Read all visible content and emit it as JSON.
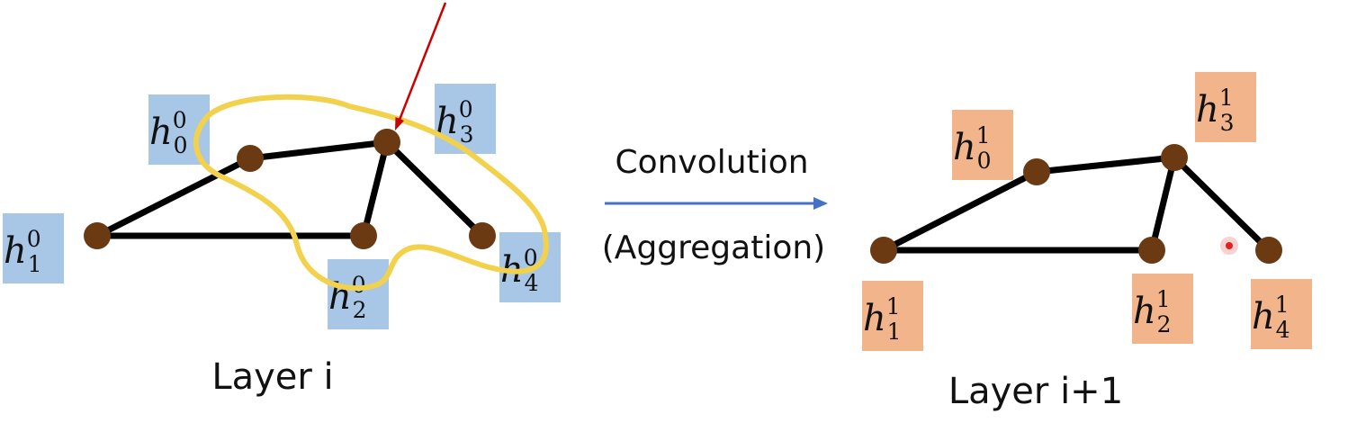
{
  "colors": {
    "edge": "#000000",
    "node": "#6b3a12",
    "layer_in_box": "#a8c6e6",
    "layer_out_box": "#f1b48b",
    "highlight": "#f2d24c",
    "pointer": "#cc0000",
    "arrow": "#4472c4"
  },
  "layer_in": {
    "caption": "Layer i",
    "labels": [
      {
        "base": "h",
        "sup": "0",
        "sub": "0"
      },
      {
        "base": "h",
        "sup": "0",
        "sub": "1"
      },
      {
        "base": "h",
        "sup": "0",
        "sub": "2"
      },
      {
        "base": "h",
        "sup": "0",
        "sub": "3"
      },
      {
        "base": "h",
        "sup": "0",
        "sub": "4"
      }
    ]
  },
  "operation": {
    "top": "Convolution",
    "bottom": "(Aggregation)"
  },
  "layer_out": {
    "caption": "Layer i+1",
    "labels": [
      {
        "base": "h",
        "sup": "1",
        "sub": "0"
      },
      {
        "base": "h",
        "sup": "1",
        "sub": "1"
      },
      {
        "base": "h",
        "sup": "1",
        "sub": "2"
      },
      {
        "base": "h",
        "sup": "1",
        "sub": "3"
      },
      {
        "base": "h",
        "sup": "1",
        "sub": "4"
      }
    ]
  }
}
